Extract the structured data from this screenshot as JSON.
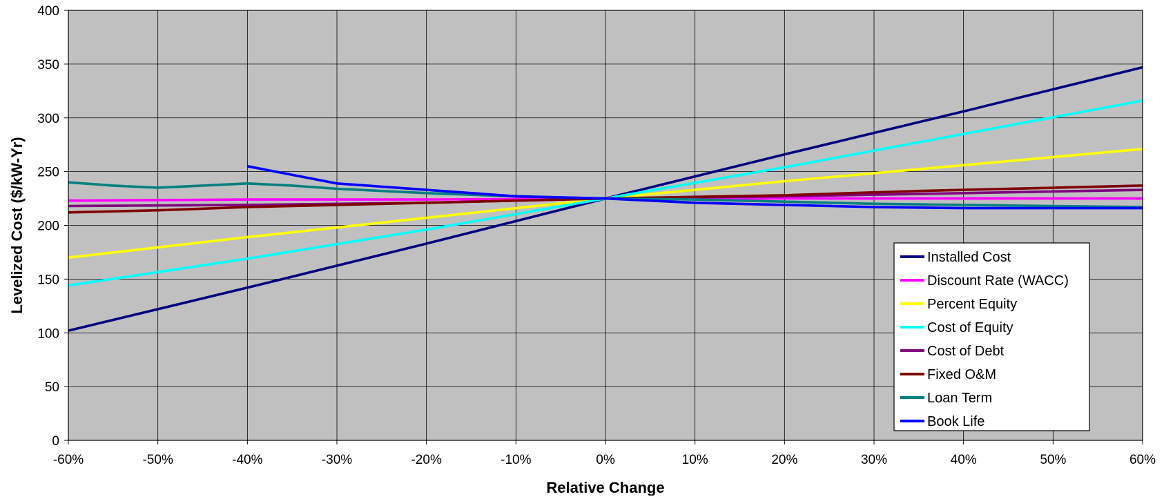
{
  "chart_data": {
    "type": "line",
    "title": "",
    "xlabel": "Relative Change",
    "ylabel": "Levelized Cost ($/kW-Yr)",
    "x_unit": "percent",
    "xlim": [
      -60,
      60
    ],
    "ylim": [
      0,
      400
    ],
    "x_ticks": [
      -60,
      -50,
      -40,
      -30,
      -20,
      -10,
      0,
      10,
      20,
      30,
      40,
      50,
      60
    ],
    "x_tick_labels": [
      "-60%",
      "-50%",
      "-40%",
      "-30%",
      "-20%",
      "-10%",
      "0%",
      "10%",
      "20%",
      "30%",
      "40%",
      "50%",
      "60%"
    ],
    "y_ticks": [
      0,
      50,
      100,
      150,
      200,
      250,
      300,
      350,
      400
    ],
    "y_tick_labels": [
      "0",
      "50",
      "100",
      "150",
      "200",
      "250",
      "300",
      "350",
      "400"
    ],
    "grid": true,
    "plot_background": "#c0c0c0",
    "legend_position": "bottom-right",
    "series": [
      {
        "name": "Installed Cost",
        "color": "#000080",
        "x": [
          -60,
          -40,
          -20,
          0,
          20,
          40,
          60
        ],
        "y": [
          102,
          142,
          183,
          225,
          266,
          306,
          347
        ]
      },
      {
        "name": "Discount Rate (WACC)",
        "color": "#ff00ff",
        "x": [
          -60,
          -40,
          -20,
          0,
          20,
          40,
          60
        ],
        "y": [
          223,
          224,
          224,
          225,
          225,
          225,
          225
        ]
      },
      {
        "name": "Percent Equity",
        "color": "#ffff00",
        "x": [
          -60,
          -40,
          -20,
          0,
          20,
          40,
          60
        ],
        "y": [
          170,
          189,
          207,
          225,
          241,
          256,
          271
        ]
      },
      {
        "name": "Cost of Equity",
        "color": "#00ffff",
        "x": [
          -60,
          -40,
          -20,
          0,
          20,
          40,
          60
        ],
        "y": [
          144,
          169,
          196,
          225,
          254,
          285,
          316
        ]
      },
      {
        "name": "Cost of Debt",
        "color": "#800080",
        "x": [
          -60,
          -40,
          -20,
          0,
          20,
          40,
          60
        ],
        "y": [
          218,
          219,
          221,
          225,
          227,
          230,
          233
        ]
      },
      {
        "name": "Fixed O&M",
        "color": "#800000",
        "x": [
          -60,
          -50,
          -40,
          -20,
          0,
          20,
          35,
          60
        ],
        "y": [
          212,
          214,
          217,
          221,
          225,
          228,
          232,
          237
        ]
      },
      {
        "name": "Loan Term",
        "color": "#008080",
        "x": [
          -60,
          -55,
          -50,
          -40,
          -35,
          -30,
          -20,
          -10,
          0,
          10,
          20,
          30,
          40,
          50,
          60
        ],
        "y": [
          240,
          237,
          235,
          239,
          237,
          234,
          230,
          227,
          225,
          224,
          222,
          220,
          219,
          218,
          217
        ]
      },
      {
        "name": "Book Life",
        "color": "#0000ff",
        "x": [
          -40,
          -30,
          -25,
          -20,
          -10,
          0,
          10,
          20,
          30,
          40,
          50,
          60
        ],
        "y": [
          255,
          239,
          236,
          233,
          227,
          225,
          221,
          219,
          217,
          216,
          216,
          216
        ]
      }
    ]
  }
}
